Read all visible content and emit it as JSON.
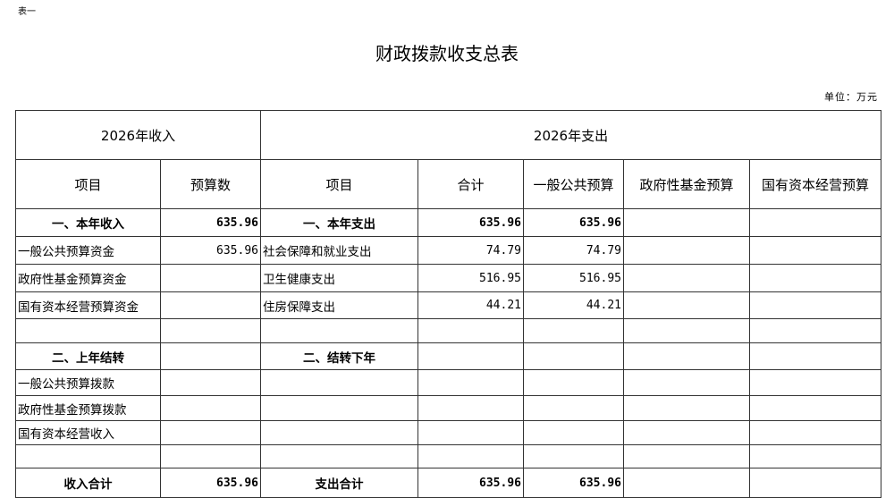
{
  "tag": "表一",
  "title": "财政拨款收支总表",
  "unit": "单位：万元",
  "header": {
    "income": "2026年收入",
    "expense": "2026年支出",
    "cols": [
      "项目",
      "预算数",
      "项目",
      "合计",
      "一般公共预算",
      "政府性基金预算",
      "国有资本经营预算"
    ]
  },
  "rows": [
    [
      "一、本年收入",
      "635.96",
      "一、本年支出",
      "635.96",
      "635.96",
      "",
      ""
    ],
    [
      "一般公共预算资金",
      "635.96",
      "社会保障和就业支出",
      "74.79",
      "74.79",
      "",
      ""
    ],
    [
      "政府性基金预算资金",
      "",
      "卫生健康支出",
      "516.95",
      "516.95",
      "",
      ""
    ],
    [
      "国有资本经营预算资金",
      "",
      "住房保障支出",
      "44.21",
      "44.21",
      "",
      ""
    ],
    [
      "",
      "",
      "",
      "",
      "",
      "",
      ""
    ],
    [
      "二、上年结转",
      "",
      "二、结转下年",
      "",
      "",
      "",
      ""
    ],
    [
      "一般公共预算拨款",
      "",
      "",
      "",
      "",
      "",
      ""
    ],
    [
      "政府性基金预算拨款",
      "",
      "",
      "",
      "",
      "",
      ""
    ],
    [
      "国有资本经营收入",
      "",
      "",
      "",
      "",
      "",
      ""
    ],
    [
      "",
      "",
      "",
      "",
      "",
      "",
      ""
    ],
    [
      "收入合计",
      "635.96",
      "支出合计",
      "635.96",
      "635.96",
      "",
      ""
    ]
  ],
  "bold_rows": [
    0,
    5,
    10
  ]
}
